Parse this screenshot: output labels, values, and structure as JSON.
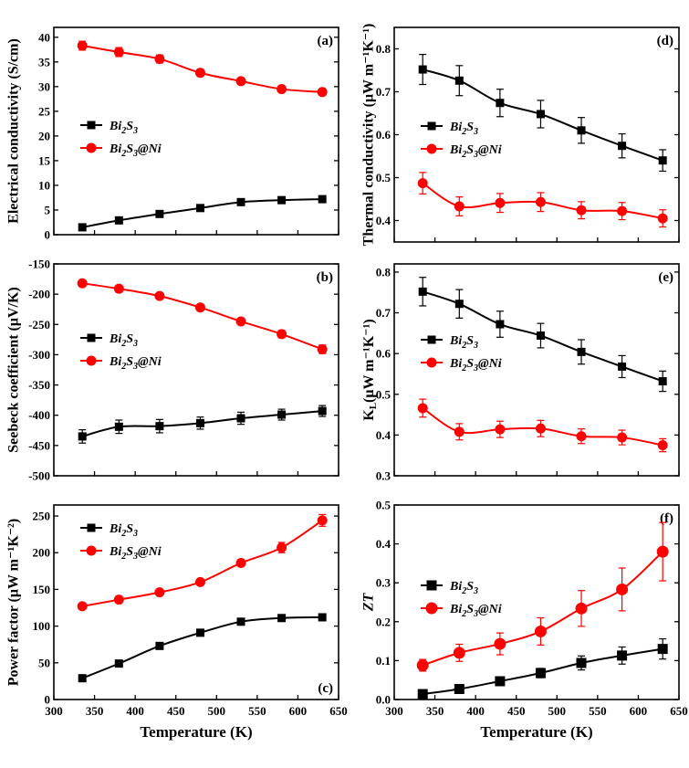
{
  "chart_data": [
    {
      "id": "a",
      "type": "line",
      "panel_label": "(a)",
      "ylabel": "Electrical conductivity (S/cm)",
      "xlabel": "",
      "xlim": [
        300,
        650
      ],
      "ylim": [
        0,
        42
      ],
      "yticks": [
        0,
        5,
        10,
        15,
        20,
        25,
        30,
        35,
        40
      ],
      "ytick_labels": [
        "0",
        "5",
        "10",
        "15",
        "20",
        "25",
        "30",
        "35",
        "40"
      ],
      "legend": "center-left",
      "series": [
        {
          "name": "Bi2S3",
          "label_main": "Bi",
          "label_sub1": "2",
          "label_mid": "S",
          "label_sub2": "3",
          "label_tail": "",
          "color": "#000000",
          "marker": "square",
          "x": [
            335,
            380,
            430,
            480,
            530,
            580,
            630
          ],
          "y": [
            1.5,
            2.9,
            4.2,
            5.4,
            6.6,
            7.0,
            7.2
          ],
          "err": [
            0.2,
            0.2,
            0.2,
            0.2,
            0.2,
            0.2,
            0.2
          ]
        },
        {
          "name": "Bi2S3@Ni",
          "label_main": "Bi",
          "label_sub1": "2",
          "label_mid": "S",
          "label_sub2": "3",
          "label_tail": "@Ni",
          "color": "#ff0000",
          "marker": "circle",
          "x": [
            335,
            380,
            430,
            480,
            530,
            580,
            630
          ],
          "y": [
            38.3,
            37.0,
            35.6,
            32.8,
            31.1,
            29.5,
            28.9
          ],
          "err": [
            0.9,
            0.9,
            0.8,
            0.7,
            0.6,
            0.5,
            0.5
          ]
        }
      ]
    },
    {
      "id": "b",
      "type": "line",
      "panel_label": "(b)",
      "ylabel": "Seebeck coefficient (μV/K)",
      "xlabel": "",
      "xlim": [
        300,
        650
      ],
      "ylim": [
        -500,
        -150
      ],
      "yticks": [
        -500,
        -450,
        -400,
        -350,
        -300,
        -250,
        -200,
        -150
      ],
      "ytick_labels": [
        "-500",
        "-450",
        "-400",
        "-350",
        "-300",
        "-250",
        "-200",
        "-150"
      ],
      "legend": "center-left",
      "series": [
        {
          "name": "Bi2S3",
          "label_main": "Bi",
          "label_sub1": "2",
          "label_mid": "S",
          "label_sub2": "3",
          "label_tail": "",
          "color": "#000000",
          "marker": "square",
          "x": [
            335,
            380,
            430,
            480,
            530,
            580,
            630
          ],
          "y": [
            -435,
            -419,
            -418,
            -413,
            -405,
            -399,
            -393
          ],
          "err": [
            11,
            11,
            11,
            10,
            10,
            9,
            9
          ]
        },
        {
          "name": "Bi2S3@Ni",
          "label_main": "Bi",
          "label_sub1": "2",
          "label_mid": "S",
          "label_sub2": "3",
          "label_tail": "@Ni",
          "color": "#ff0000",
          "marker": "circle",
          "x": [
            335,
            380,
            430,
            480,
            530,
            580,
            630
          ],
          "y": [
            -182,
            -191,
            -203,
            -222,
            -245,
            -266,
            -291
          ],
          "err": [
            3,
            3,
            3,
            4,
            4,
            6,
            7
          ]
        }
      ]
    },
    {
      "id": "c",
      "type": "line",
      "panel_label": "(c)",
      "ylabel": "Power factor (μW m⁻¹K⁻²)",
      "xlabel": "Temperature (K)",
      "xlim": [
        300,
        650
      ],
      "ylim": [
        0,
        265
      ],
      "yticks": [
        0,
        50,
        100,
        150,
        200,
        250
      ],
      "ytick_labels": [
        "0",
        "50",
        "100",
        "150",
        "200",
        "250"
      ],
      "xticks": [
        300,
        350,
        400,
        450,
        500,
        550,
        600,
        650
      ],
      "xtick_labels": [
        "300",
        "350",
        "400",
        "450",
        "500",
        "550",
        "600",
        "650"
      ],
      "legend": "top-left",
      "series": [
        {
          "name": "Bi2S3",
          "label_main": "Bi",
          "label_sub1": "2",
          "label_mid": "S",
          "label_sub2": "3",
          "label_tail": "",
          "color": "#000000",
          "marker": "square",
          "x": [
            335,
            380,
            430,
            480,
            530,
            580,
            630
          ],
          "y": [
            29,
            49,
            73,
            91,
            106,
            111,
            112
          ],
          "err": [
            2,
            2,
            2,
            3,
            3,
            3,
            3
          ]
        },
        {
          "name": "Bi2S3@Ni",
          "label_main": "Bi",
          "label_sub1": "2",
          "label_mid": "S",
          "label_sub2": "3",
          "label_tail": "@Ni",
          "color": "#ff0000",
          "marker": "circle",
          "x": [
            335,
            380,
            430,
            480,
            530,
            580,
            630
          ],
          "y": [
            127,
            136,
            146,
            160,
            186,
            207,
            244
          ],
          "err": [
            3,
            3,
            3,
            4,
            4,
            7,
            8
          ]
        }
      ]
    },
    {
      "id": "d",
      "type": "line",
      "panel_label": "(d)",
      "ylabel": "Thermal conductivity (μW m⁻¹K⁻¹)",
      "xlabel": "",
      "xlim": [
        300,
        650
      ],
      "ylim": [
        0.35,
        0.85
      ],
      "yticks": [
        0.4,
        0.5,
        0.6,
        0.7,
        0.8
      ],
      "ytick_labels": [
        "0.4",
        "0.5",
        "0.6",
        "0.7",
        "0.8"
      ],
      "legend": "center-left",
      "series": [
        {
          "name": "Bi2S3",
          "label_main": "Bi",
          "label_sub1": "2",
          "label_mid": "S",
          "label_sub2": "3",
          "label_tail": "",
          "color": "#000000",
          "marker": "square",
          "x": [
            335,
            380,
            430,
            480,
            530,
            580,
            630
          ],
          "y": [
            0.752,
            0.726,
            0.674,
            0.648,
            0.61,
            0.574,
            0.54
          ],
          "err": [
            0.035,
            0.035,
            0.032,
            0.032,
            0.03,
            0.028,
            0.025
          ]
        },
        {
          "name": "Bi2S3@Ni",
          "label_main": "Bi",
          "label_sub1": "2",
          "label_mid": "S",
          "label_sub2": "3",
          "label_tail": "@Ni",
          "color": "#ff0000",
          "marker": "circle",
          "x": [
            335,
            380,
            430,
            480,
            530,
            580,
            630
          ],
          "y": [
            0.487,
            0.433,
            0.441,
            0.443,
            0.424,
            0.422,
            0.405
          ],
          "err": [
            0.025,
            0.022,
            0.022,
            0.022,
            0.02,
            0.02,
            0.02
          ]
        }
      ]
    },
    {
      "id": "e",
      "type": "line",
      "panel_label": "(e)",
      "ylabel": "KL(μW m⁻¹K⁻¹)",
      "xlabel": "",
      "xlim": [
        300,
        650
      ],
      "ylim": [
        0.3,
        0.82
      ],
      "yticks": [
        0.3,
        0.4,
        0.5,
        0.6,
        0.7,
        0.8
      ],
      "ytick_labels": [
        "0.3",
        "0.4",
        "0.5",
        "0.6",
        "0.7",
        "0.8"
      ],
      "legend": "center-left",
      "series": [
        {
          "name": "Bi2S3",
          "label_main": "Bi",
          "label_sub1": "2",
          "label_mid": "S",
          "label_sub2": "3",
          "label_tail": "",
          "color": "#000000",
          "marker": "square",
          "x": [
            335,
            380,
            430,
            480,
            530,
            580,
            630
          ],
          "y": [
            0.752,
            0.722,
            0.672,
            0.644,
            0.604,
            0.568,
            0.532
          ],
          "err": [
            0.035,
            0.035,
            0.032,
            0.03,
            0.03,
            0.027,
            0.025
          ]
        },
        {
          "name": "Bi2S3@Ni",
          "label_main": "Bi",
          "label_sub1": "2",
          "label_mid": "S",
          "label_sub2": "3",
          "label_tail": "@Ni",
          "color": "#ff0000",
          "marker": "circle",
          "x": [
            335,
            380,
            430,
            480,
            530,
            580,
            630
          ],
          "y": [
            0.466,
            0.408,
            0.414,
            0.416,
            0.397,
            0.394,
            0.375
          ],
          "err": [
            0.022,
            0.02,
            0.02,
            0.02,
            0.018,
            0.018,
            0.016
          ]
        }
      ]
    },
    {
      "id": "f",
      "type": "line",
      "panel_label": "(f)",
      "ylabel": "ZT",
      "xlabel": "Temperature (K)",
      "xlim": [
        300,
        650
      ],
      "ylim": [
        0,
        0.5
      ],
      "yticks": [
        0.0,
        0.1,
        0.2,
        0.3,
        0.4,
        0.5
      ],
      "ytick_labels": [
        "0.0",
        "0.1",
        "0.2",
        "0.3",
        "0.4",
        "0.5"
      ],
      "xticks": [
        300,
        350,
        400,
        450,
        500,
        550,
        600,
        650
      ],
      "xtick_labels": [
        "300",
        "350",
        "400",
        "450",
        "500",
        "550",
        "600",
        "650"
      ],
      "legend": "center-left",
      "series": [
        {
          "name": "Bi2S3",
          "label_main": "Bi",
          "label_sub1": "2",
          "label_mid": "S",
          "label_sub2": "3",
          "label_tail": "",
          "color": "#000000",
          "marker": "square",
          "x": [
            335,
            380,
            430,
            480,
            530,
            580,
            630
          ],
          "y": [
            0.014,
            0.027,
            0.047,
            0.068,
            0.094,
            0.113,
            0.13
          ],
          "err": [
            0.005,
            0.006,
            0.008,
            0.012,
            0.018,
            0.022,
            0.026
          ]
        },
        {
          "name": "Bi2S3@Ni",
          "label_main": "Bi",
          "label_sub1": "2",
          "label_mid": "S",
          "label_sub2": "3",
          "label_tail": "@Ni",
          "color": "#ff0000",
          "marker": "circle",
          "x": [
            335,
            380,
            430,
            480,
            530,
            580,
            630
          ],
          "y": [
            0.088,
            0.12,
            0.143,
            0.175,
            0.234,
            0.283,
            0.38
          ],
          "err": [
            0.015,
            0.022,
            0.028,
            0.035,
            0.046,
            0.055,
            0.075
          ]
        }
      ]
    }
  ]
}
